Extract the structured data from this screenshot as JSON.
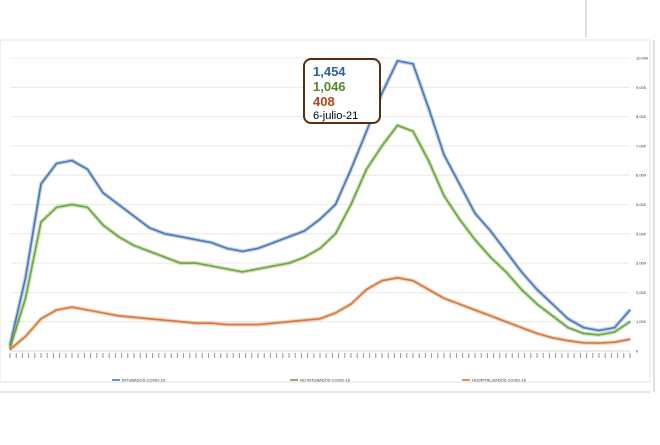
{
  "chart_data": {
    "type": "line",
    "title": "",
    "xlabel": "",
    "ylabel": "",
    "ylim": [
      0,
      10000
    ],
    "yticks": [
      "0",
      "1,000",
      "2,000",
      "3,000",
      "4,000",
      "5,000",
      "6,000",
      "7,000",
      "8,000",
      "9,000",
      "10,000"
    ],
    "ytick_values": [
      0,
      1000,
      2000,
      3000,
      4000,
      5000,
      6000,
      7000,
      8000,
      9000,
      10000
    ],
    "grid": true,
    "legend_position": "bottom",
    "x_index_count": 200,
    "series": [
      {
        "name": "INTUBADOS COVID-19",
        "color": "#4a78b8",
        "x": [
          0,
          5,
          10,
          15,
          20,
          25,
          30,
          35,
          40,
          45,
          50,
          55,
          60,
          65,
          70,
          75,
          80,
          85,
          90,
          95,
          100,
          105,
          110,
          115,
          120,
          125,
          130,
          135,
          140,
          145,
          150,
          155,
          160,
          165,
          170,
          175,
          180,
          185,
          190,
          195,
          200
        ],
        "y": [
          200,
          2500,
          5700,
          6400,
          6500,
          6200,
          5400,
          5000,
          4600,
          4200,
          4000,
          3900,
          3800,
          3700,
          3500,
          3400,
          3500,
          3700,
          3900,
          4100,
          4500,
          5000,
          6200,
          7500,
          8800,
          9900,
          9800,
          8300,
          6700,
          5700,
          4700,
          4100,
          3400,
          2700,
          2100,
          1600,
          1100,
          800,
          700,
          800,
          1400
        ]
      },
      {
        "name": "NO INTUBADOS COVID-19",
        "color": "#6ea53c",
        "x": [
          0,
          5,
          10,
          15,
          20,
          25,
          30,
          35,
          40,
          45,
          50,
          55,
          60,
          65,
          70,
          75,
          80,
          85,
          90,
          95,
          100,
          105,
          110,
          115,
          120,
          125,
          130,
          135,
          140,
          145,
          150,
          155,
          160,
          165,
          170,
          175,
          180,
          185,
          190,
          195,
          200
        ],
        "y": [
          100,
          1800,
          4400,
          4900,
          5000,
          4900,
          4300,
          3900,
          3600,
          3400,
          3200,
          3000,
          3000,
          2900,
          2800,
          2700,
          2800,
          2900,
          3000,
          3200,
          3500,
          4000,
          5000,
          6200,
          7000,
          7700,
          7500,
          6500,
          5300,
          4500,
          3800,
          3200,
          2700,
          2100,
          1600,
          1200,
          800,
          600,
          550,
          650,
          1000
        ]
      },
      {
        "name": "HOSPITALIZADOS COVID-19",
        "color": "#d9773b",
        "x": [
          0,
          5,
          10,
          15,
          20,
          25,
          30,
          35,
          40,
          45,
          50,
          55,
          60,
          65,
          70,
          75,
          80,
          85,
          90,
          95,
          100,
          105,
          110,
          115,
          120,
          125,
          130,
          135,
          140,
          145,
          150,
          155,
          160,
          165,
          170,
          175,
          180,
          185,
          190,
          195,
          200
        ],
        "y": [
          50,
          500,
          1100,
          1400,
          1500,
          1400,
          1300,
          1200,
          1150,
          1100,
          1050,
          1000,
          950,
          950,
          900,
          900,
          900,
          950,
          1000,
          1050,
          1100,
          1300,
          1600,
          2100,
          2400,
          2500,
          2400,
          2100,
          1800,
          1600,
          1400,
          1200,
          1000,
          800,
          600,
          450,
          350,
          280,
          270,
          300,
          400
        ]
      }
    ],
    "callout": {
      "values": [
        "1,454",
        "1,046",
        "408"
      ],
      "colors": [
        "#2f5f9f",
        "#4d8a2a",
        "#b5451b"
      ],
      "date": "6-julio-21"
    }
  }
}
